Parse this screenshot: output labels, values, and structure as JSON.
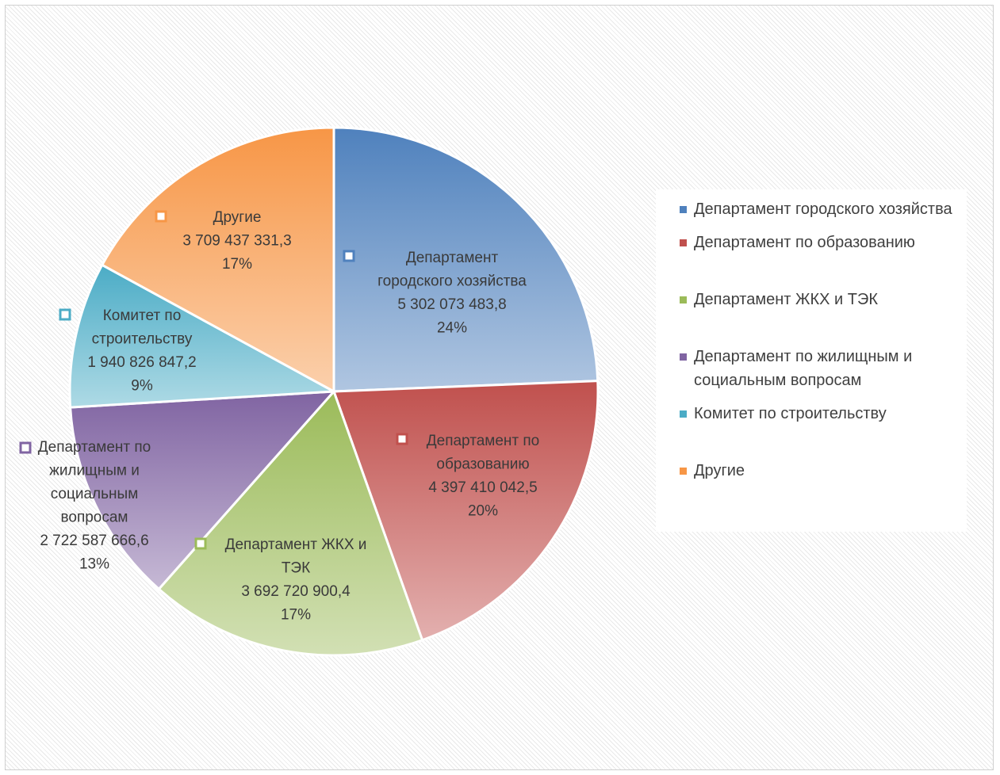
{
  "chart_data": {
    "type": "pie",
    "categories": [
      "Департамент городского хозяйства",
      "Департамент по образованию",
      "Департамент ЖКХ и ТЭК",
      "Департамент по жилищным и социальным вопросам",
      "Комитет по строительству",
      "Другие"
    ],
    "values": [
      5302073483.8,
      4397410042.5,
      3692720900.4,
      2722587666.6,
      1940826847.2,
      3709437331.3
    ],
    "value_labels": [
      "5 302 073 483,8",
      "4 397 410 042,5",
      "3 692 720 900,4",
      "2 722 587 666,6",
      "1 940 826 847,2",
      "3 709 437 331,3"
    ],
    "percent_labels": [
      "24%",
      "20%",
      "17%",
      "13%",
      "9%",
      "17%"
    ],
    "colors": [
      "#4f81bd",
      "#c0504d",
      "#9bbb59",
      "#8064a2",
      "#4bacc6",
      "#f79646"
    ],
    "legend_position": "right"
  }
}
